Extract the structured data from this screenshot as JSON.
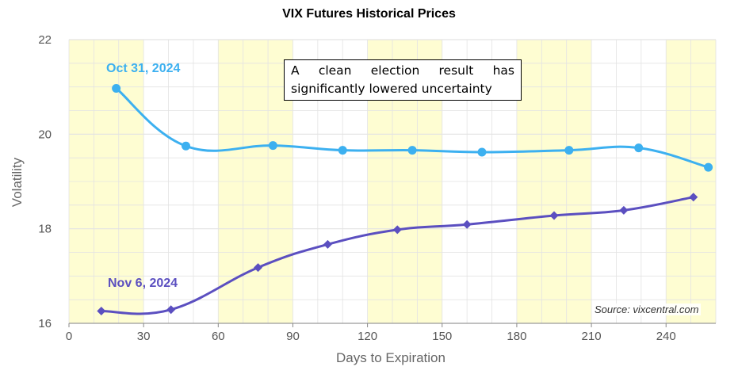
{
  "chart_data": {
    "type": "line",
    "title": "VIX Futures Historical Prices",
    "xlabel": "Days to Expiration",
    "ylabel": "Volatility",
    "xlim": [
      0,
      260
    ],
    "ylim": [
      16,
      22
    ],
    "xticks": [
      0,
      30,
      60,
      90,
      120,
      150,
      180,
      210,
      240
    ],
    "yticks": [
      16,
      18,
      20,
      22
    ],
    "grid": true,
    "shaded_bands": [
      [
        0,
        30
      ],
      [
        60,
        90
      ],
      [
        120,
        150
      ],
      [
        180,
        210
      ],
      [
        240,
        260
      ]
    ],
    "series": [
      {
        "name": "Oct 31, 2024",
        "color": "#3cb0f0",
        "marker": "circle",
        "x": [
          19,
          47,
          82,
          110,
          138,
          166,
          201,
          229,
          257
        ],
        "y": [
          20.97,
          19.75,
          19.76,
          19.66,
          19.66,
          19.62,
          19.66,
          19.71,
          19.3
        ]
      },
      {
        "name": "Nov 6, 2024",
        "color": "#5b4fc0",
        "marker": "diamond",
        "x": [
          13,
          41,
          76,
          104,
          132,
          160,
          195,
          223,
          251
        ],
        "y": [
          16.26,
          16.29,
          17.18,
          17.67,
          17.98,
          18.09,
          18.28,
          18.39,
          18.67
        ]
      }
    ],
    "annotation": "A clean election result has significantly lowered uncertainty",
    "source": "Source: vixcentral.com"
  },
  "colors": {
    "band": "#fefdd2",
    "grid": "#e3e3e3"
  }
}
